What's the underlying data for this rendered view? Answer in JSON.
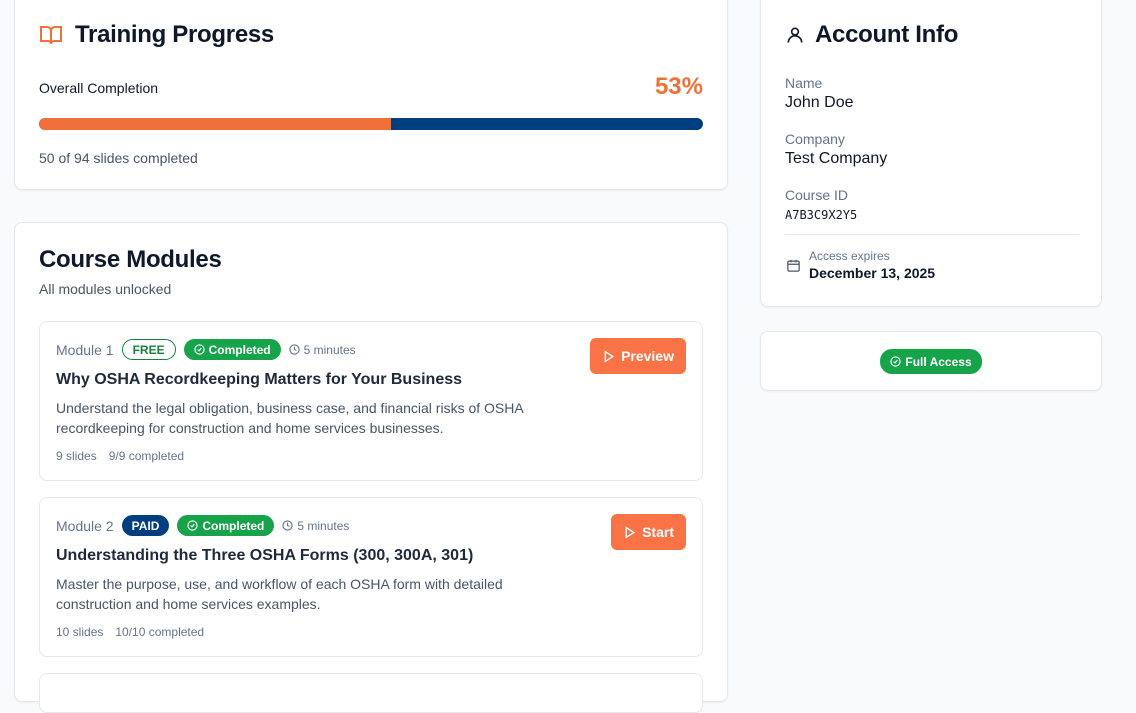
{
  "colors": {
    "accent": "#f0703a",
    "navy": "#003e80",
    "green": "#16a34a"
  },
  "progress": {
    "title": "Training Progress",
    "icon": "book-open-icon",
    "label": "Overall Completion",
    "percent_text": "53%",
    "percent": 53,
    "summary": "50 of 94 slides completed"
  },
  "modules": {
    "title": "Course Modules",
    "subtitle": "All modules unlocked",
    "items": [
      {
        "number": "Module 1",
        "tier": "FREE",
        "status": "Completed",
        "duration": "5 minutes",
        "title": "Why OSHA Recordkeeping Matters for Your Business",
        "description": "Understand the legal obligation, business case, and financial risks of OSHA recordkeeping for construction and home services businesses.",
        "slides": "9 slides",
        "completed": "9/9 completed",
        "action": "Preview"
      },
      {
        "number": "Module 2",
        "tier": "PAID",
        "status": "Completed",
        "duration": "5 minutes",
        "title": "Understanding the Three OSHA Forms (300, 300A, 301)",
        "description": "Master the purpose, use, and workflow of each OSHA form with detailed construction and home services examples.",
        "slides": "10 slides",
        "completed": "10/10 completed",
        "action": "Start"
      }
    ]
  },
  "account": {
    "title": "Account Info",
    "name_label": "Name",
    "name": "John Doe",
    "company_label": "Company",
    "company": "Test Company",
    "course_id_label": "Course ID",
    "course_id": "A7B3C9X2Y5",
    "expires_label": "Access expires",
    "expires": "December 13, 2025"
  },
  "access": {
    "badge": "Full Access"
  }
}
